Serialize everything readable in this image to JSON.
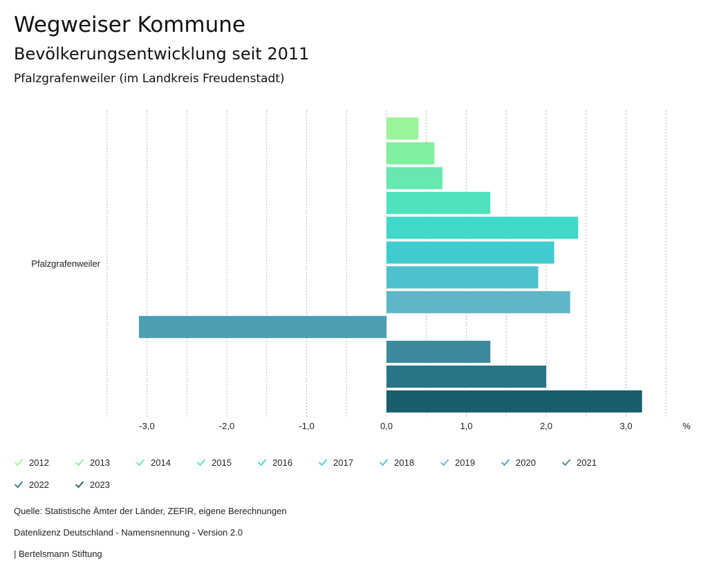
{
  "header": {
    "title": "Wegweiser Kommune",
    "subtitle": "Bevölkerungsentwicklung seit 2011",
    "location": "Pfalzgrafenweiler (im Landkreis Freudenstadt)"
  },
  "chart_data": {
    "type": "bar",
    "orientation": "horizontal",
    "category": "Pfalzgrafenweiler",
    "unit": "%",
    "xlim": [
      -3.5,
      3.5
    ],
    "ticks": [
      -3,
      -2,
      -1,
      0,
      1,
      2,
      3
    ],
    "tick_labels": [
      "-3,0",
      "-2,0",
      "-1,0",
      "0,0",
      "1,0",
      "2,0",
      "3,0"
    ],
    "series": [
      {
        "name": "2012",
        "value": 0.4,
        "color": "#9af59a"
      },
      {
        "name": "2013",
        "value": 0.6,
        "color": "#82eea0"
      },
      {
        "name": "2014",
        "value": 0.7,
        "color": "#66e8ae"
      },
      {
        "name": "2015",
        "value": 1.3,
        "color": "#4fe2bf"
      },
      {
        "name": "2016",
        "value": 2.4,
        "color": "#40d8c8"
      },
      {
        "name": "2017",
        "value": 2.1,
        "color": "#40cccf"
      },
      {
        "name": "2018",
        "value": 1.9,
        "color": "#4ec1ce"
      },
      {
        "name": "2019",
        "value": 2.3,
        "color": "#5fb6c8"
      },
      {
        "name": "2020",
        "value": -3.1,
        "color": "#4c9fb2"
      },
      {
        "name": "2021",
        "value": 1.3,
        "color": "#3b899c"
      },
      {
        "name": "2022",
        "value": 2.0,
        "color": "#287587"
      },
      {
        "name": "2023",
        "value": 3.2,
        "color": "#185f6e"
      }
    ]
  },
  "footer": {
    "source": "Quelle: Statistische Ämter der Länder, ZEFIR, eigene Berechnungen",
    "license": "Datenlizenz Deutschland - Namensnennung - Version 2.0",
    "publisher": "| Bertelsmann Stiftung"
  }
}
